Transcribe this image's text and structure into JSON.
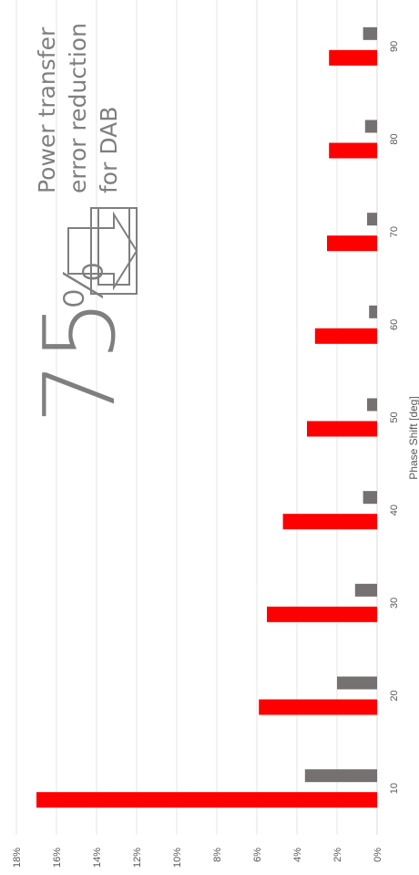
{
  "chart_data": {
    "type": "bar",
    "orientation": "rotated",
    "xlabel": "Phase Shift [deg]",
    "ylabel": "",
    "categories": [
      "10",
      "20",
      "30",
      "40",
      "50",
      "60",
      "70",
      "80",
      "90"
    ],
    "series": [
      {
        "color": "#ff0000",
        "values": [
          17.0,
          5.9,
          5.5,
          4.7,
          3.5,
          3.1,
          2.5,
          2.4,
          2.4
        ]
      },
      {
        "color": "#757171",
        "values": [
          3.6,
          2.0,
          1.1,
          0.7,
          0.5,
          0.4,
          0.5,
          0.6,
          0.7
        ]
      }
    ],
    "ylim": [
      0,
      18
    ],
    "yticks": [
      "0%",
      "2%",
      "4%",
      "6%",
      "8%",
      "10%",
      "12%",
      "14%",
      "16%",
      "18%"
    ],
    "grid": true,
    "legend": "none"
  },
  "annotation": {
    "big_number": "75",
    "percent_sign": "%",
    "lines": [
      "Power transfer",
      "error reduction",
      "for DAB"
    ],
    "arrow_icon": "arrow-icon"
  },
  "colors": {
    "gridline": "#e6e6e6",
    "axis": "#d9d9d9",
    "text": "#595959",
    "annotation": "#7f7f7f"
  }
}
